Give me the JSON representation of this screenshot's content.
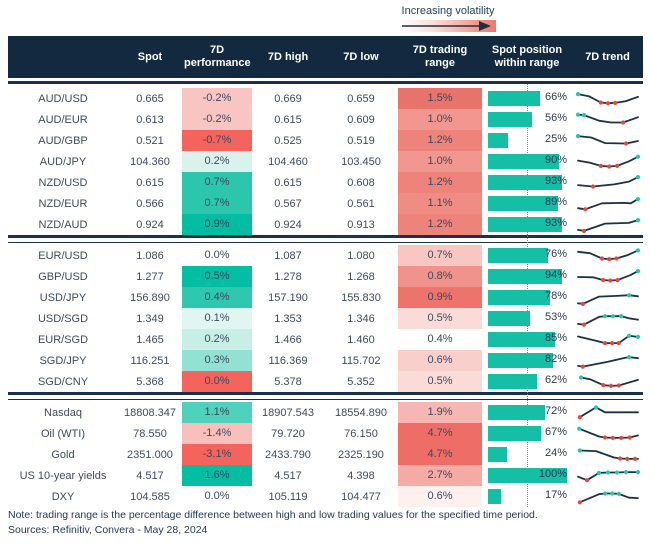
{
  "legend": {
    "label": "Increasing volatility"
  },
  "footer": {
    "note": "Note: trading range is the percentage difference between high and low trading values for the specified time period.",
    "sources": "Sources: Refinitiv, Convera - May 28, 2024"
  },
  "colors": {
    "header_bg": "#13293F",
    "rule": "#1B3049",
    "bar_teal": "#14BFA6",
    "spark_line": "#1C3144",
    "spark_dot_up": "#25C5AE",
    "spark_dot_down": "#E8473C",
    "strong_red": "#F4645C",
    "strong_teal": "#04BEA4"
  },
  "chart_data": {
    "type": "table",
    "columns": [
      "",
      "Spot",
      "7D performance",
      "7D high",
      "7D low",
      "7D trading range",
      "Spot position within range",
      "7D trend"
    ],
    "position_axis": {
      "midline_pct": 50,
      "max_pct": 100
    },
    "groups": [
      {
        "rows": [
          {
            "name": "AUD/USD",
            "spot": "0.665",
            "perf": "-0.2%",
            "perf_bg": "#F8C5C2",
            "high": "0.669",
            "low": "0.659",
            "range": "1.5%",
            "range_bg": "#E8736B",
            "pos": 66,
            "spark": [
              [
                0,
                0.15,
                "t"
              ],
              [
                0.18,
                0.3,
                ""
              ],
              [
                0.38,
                0.75,
                "r"
              ],
              [
                0.5,
                0.8,
                "r"
              ],
              [
                0.62,
                0.78,
                "r"
              ],
              [
                0.8,
                0.65,
                ""
              ],
              [
                1,
                0.35,
                ""
              ]
            ]
          },
          {
            "name": "AUD/EUR",
            "spot": "0.613",
            "perf": "-0.2%",
            "perf_bg": "#F8C5C2",
            "high": "0.615",
            "low": "0.609",
            "range": "1.0%",
            "range_bg": "#F1978F",
            "pos": 56,
            "spark": [
              [
                0,
                0.12,
                "t"
              ],
              [
                0.1,
                0.15,
                "t"
              ],
              [
                0.35,
                0.55,
                ""
              ],
              [
                0.55,
                0.68,
                ""
              ],
              [
                0.75,
                0.68,
                "r"
              ],
              [
                1,
                0.3,
                ""
              ]
            ]
          },
          {
            "name": "AUD/GBP",
            "spot": "0.521",
            "perf": "-0.7%",
            "perf_bg": "#F4645C",
            "high": "0.525",
            "low": "0.519",
            "range": "1.2%",
            "range_bg": "#ED837B",
            "pos": 25,
            "spark": [
              [
                0,
                0.15,
                "t"
              ],
              [
                0.22,
                0.25,
                ""
              ],
              [
                0.45,
                0.65,
                ""
              ],
              [
                0.8,
                0.68,
                "r"
              ],
              [
                1,
                0.5,
                ""
              ]
            ]
          },
          {
            "name": "AUD/JPY",
            "spot": "104.360",
            "perf": "0.2%",
            "perf_bg": "#D9F3EC",
            "high": "104.460",
            "low": "103.450",
            "range": "1.0%",
            "range_bg": "#F1978F",
            "pos": 90,
            "spark": [
              [
                0,
                0.4,
                ""
              ],
              [
                0.2,
                0.55,
                ""
              ],
              [
                0.38,
                0.78,
                "r"
              ],
              [
                0.52,
                0.82,
                "r"
              ],
              [
                0.65,
                0.78,
                "r"
              ],
              [
                0.85,
                0.45,
                ""
              ],
              [
                1,
                0.12,
                "t"
              ]
            ]
          },
          {
            "name": "NZD/USD",
            "spot": "0.615",
            "perf": "0.7%",
            "perf_bg": "#2CC6AD",
            "high": "0.615",
            "low": "0.608",
            "range": "1.2%",
            "range_bg": "#ED837B",
            "pos": 93,
            "spark": [
              [
                0,
                0.65,
                ""
              ],
              [
                0.25,
                0.75,
                "r"
              ],
              [
                0.6,
                0.6,
                ""
              ],
              [
                0.85,
                0.4,
                ""
              ],
              [
                1,
                0.08,
                "t"
              ]
            ]
          },
          {
            "name": "NZD/EUR",
            "spot": "0.566",
            "perf": "0.7%",
            "perf_bg": "#2CC6AD",
            "high": "0.567",
            "low": "0.561",
            "range": "1.1%",
            "range_bg": "#EF8D85",
            "pos": 89,
            "spark": [
              [
                0,
                0.8,
                ""
              ],
              [
                0.12,
                0.88,
                "r"
              ],
              [
                0.4,
                0.45,
                ""
              ],
              [
                0.75,
                0.42,
                ""
              ],
              [
                0.88,
                0.45,
                ""
              ],
              [
                1,
                0.15,
                "t"
              ]
            ]
          },
          {
            "name": "NZD/AUD",
            "spot": "0.924",
            "perf": "0.9%",
            "perf_bg": "#02BDA2",
            "high": "0.924",
            "low": "0.913",
            "range": "1.2%",
            "range_bg": "#ED837B",
            "pos": 93,
            "spark": [
              [
                0,
                0.85,
                ""
              ],
              [
                0.1,
                0.92,
                "r"
              ],
              [
                0.45,
                0.4,
                ""
              ],
              [
                0.85,
                0.35,
                ""
              ],
              [
                1,
                0.15,
                "t"
              ]
            ]
          }
        ]
      },
      {
        "rows": [
          {
            "name": "EUR/USD",
            "spot": "1.086",
            "perf": "0.0%",
            "perf_bg": "#FFFFFF",
            "high": "1.087",
            "low": "1.080",
            "range": "0.7%",
            "range_bg": "#F8C7C3",
            "pos": 76,
            "spark": [
              [
                0,
                0.2,
                ""
              ],
              [
                0.2,
                0.3,
                ""
              ],
              [
                0.4,
                0.68,
                "r"
              ],
              [
                0.52,
                0.72,
                "r"
              ],
              [
                0.64,
                0.68,
                "r"
              ],
              [
                0.82,
                0.45,
                ""
              ],
              [
                1,
                0.1,
                "t"
              ]
            ]
          },
          {
            "name": "GBP/USD",
            "spot": "1.277",
            "perf": "0.5%",
            "perf_bg": "#04BEA4",
            "high": "1.278",
            "low": "1.268",
            "range": "0.8%",
            "range_bg": "#F0938C",
            "pos": 94,
            "spark": [
              [
                0,
                0.5,
                ""
              ],
              [
                0.25,
                0.52,
                ""
              ],
              [
                0.42,
                0.72,
                "r"
              ],
              [
                0.54,
                0.75,
                "r"
              ],
              [
                0.66,
                0.72,
                "r"
              ],
              [
                0.88,
                0.35,
                ""
              ],
              [
                1,
                0.08,
                "t"
              ]
            ]
          },
          {
            "name": "USD/JPY",
            "spot": "156.890",
            "perf": "0.4%",
            "perf_bg": "#2FC8AF",
            "high": "157.190",
            "low": "155.830",
            "range": "0.9%",
            "range_bg": "#ED746D",
            "pos": 78,
            "spark": [
              [
                0,
                0.88,
                ""
              ],
              [
                0.08,
                0.92,
                "r"
              ],
              [
                0.35,
                0.4,
                ""
              ],
              [
                0.65,
                0.35,
                ""
              ],
              [
                0.85,
                0.3,
                "t"
              ],
              [
                1,
                0.38,
                ""
              ]
            ]
          },
          {
            "name": "USD/SGD",
            "spot": "1.349",
            "perf": "0.1%",
            "perf_bg": "#E2F6F1",
            "high": "1.353",
            "low": "1.346",
            "range": "0.5%",
            "range_bg": "#FBDBD7",
            "pos": 53,
            "spark": [
              [
                0,
                0.85,
                ""
              ],
              [
                0.1,
                0.9,
                "r"
              ],
              [
                0.35,
                0.35,
                ""
              ],
              [
                0.45,
                0.3,
                "t"
              ],
              [
                0.58,
                0.3,
                "t"
              ],
              [
                0.72,
                0.3,
                "t"
              ],
              [
                0.85,
                0.45,
                ""
              ],
              [
                1,
                0.55,
                ""
              ]
            ]
          },
          {
            "name": "EUR/SGD",
            "spot": "1.465",
            "perf": "0.2%",
            "perf_bg": "#C7EFE6",
            "high": "1.466",
            "low": "1.460",
            "range": "0.4%",
            "range_bg": "#FFFFFF",
            "pos": 85,
            "spark": [
              [
                0,
                0.25,
                ""
              ],
              [
                0.3,
                0.55,
                ""
              ],
              [
                0.45,
                0.72,
                "r"
              ],
              [
                0.57,
                0.72,
                "r"
              ],
              [
                0.68,
                0.72,
                "r"
              ],
              [
                0.85,
                0.2,
                "t"
              ],
              [
                1,
                0.28,
                "t"
              ]
            ]
          },
          {
            "name": "SGD/JPY",
            "spot": "116.251",
            "perf": "0.3%",
            "perf_bg": "#93E1D3",
            "high": "116.369",
            "low": "115.702",
            "range": "0.6%",
            "range_bg": "#F9CFCB",
            "pos": 82,
            "spark": [
              [
                0,
                0.85,
                ""
              ],
              [
                0.08,
                0.9,
                "r"
              ],
              [
                0.5,
                0.55,
                ""
              ],
              [
                0.75,
                0.3,
                ""
              ],
              [
                0.85,
                0.22,
                "t"
              ],
              [
                1,
                0.3,
                ""
              ]
            ]
          },
          {
            "name": "SGD/CNY",
            "spot": "5.368",
            "perf": "0.0%",
            "perf_bg": "#F4645C",
            "high": "5.378",
            "low": "5.352",
            "range": "0.5%",
            "range_bg": "#FBDBD7",
            "pos": 62,
            "spark": [
              [
                0.05,
                0.18,
                "t"
              ],
              [
                0.2,
                0.3,
                ""
              ],
              [
                0.42,
                0.72,
                "r"
              ],
              [
                0.55,
                0.78,
                "r"
              ],
              [
                0.68,
                0.75,
                "r"
              ],
              [
                1,
                0.35,
                ""
              ]
            ]
          }
        ]
      },
      {
        "rows": [
          {
            "name": "Nasdaq",
            "spot": "18808.347",
            "perf": "1.1%",
            "perf_bg": "#4FD1BB",
            "high": "18907.543",
            "low": "18554.890",
            "range": "1.9%",
            "range_bg": "#F6B6B1",
            "pos": 72,
            "spark": [
              [
                0.03,
                0.8,
                "r"
              ],
              [
                0.3,
                0.1,
                "t"
              ],
              [
                0.45,
                0.45,
                ""
              ],
              [
                1,
                0.45,
                ""
              ]
            ]
          },
          {
            "name": "Oil (WTI)",
            "spot": "78.550",
            "perf": "-1.4%",
            "perf_bg": "#F9BFBB",
            "high": "79.720",
            "low": "76.150",
            "range": "4.7%",
            "range_bg": "#EE6E67",
            "pos": 67,
            "spark": [
              [
                0.02,
                0.12,
                "t"
              ],
              [
                0.35,
                0.68,
                ""
              ],
              [
                0.45,
                0.75,
                "r"
              ],
              [
                0.58,
                0.78,
                "r"
              ],
              [
                0.72,
                0.78,
                "r"
              ],
              [
                0.86,
                0.75,
                "r"
              ],
              [
                1,
                0.6,
                ""
              ]
            ]
          },
          {
            "name": "Gold",
            "spot": "2351.000",
            "perf": "-3.1%",
            "perf_bg": "#F4645C",
            "high": "2433.790",
            "low": "2325.190",
            "range": "4.7%",
            "range_bg": "#EE6E67",
            "pos": 24,
            "spark": [
              [
                0.03,
                0.18,
                "t"
              ],
              [
                0.3,
                0.22,
                ""
              ],
              [
                0.6,
                0.68,
                ""
              ],
              [
                0.7,
                0.75,
                "r"
              ],
              [
                0.82,
                0.78,
                "r"
              ],
              [
                0.95,
                0.78,
                "r"
              ],
              [
                1,
                0.78,
                ""
              ]
            ]
          },
          {
            "name": "US 10-year yields",
            "spot": "4.517",
            "perf": "1.6%",
            "perf_bg": "#04BEA4",
            "high": "4.517",
            "low": "4.398",
            "range": "2.7%",
            "range_bg": "#F5ABA5",
            "pos": 100,
            "spark": [
              [
                0,
                0.55,
                ""
              ],
              [
                0.15,
                0.8,
                "r"
              ],
              [
                0.35,
                0.28,
                "t"
              ],
              [
                0.5,
                0.25,
                "t"
              ],
              [
                0.65,
                0.25,
                "t"
              ],
              [
                0.8,
                0.22,
                "t"
              ],
              [
                1,
                0.22,
                "t"
              ]
            ]
          },
          {
            "name": "DXY",
            "spot": "104.585",
            "perf": "0.0%",
            "perf_bg": "#FFFFFF",
            "high": "105.119",
            "low": "104.477",
            "range": "0.6%",
            "range_bg": "#FDF0EE",
            "pos": 17,
            "spark": [
              [
                0.03,
                0.88,
                "r"
              ],
              [
                0.35,
                0.3,
                ""
              ],
              [
                0.45,
                0.25,
                "t"
              ],
              [
                0.57,
                0.25,
                "t"
              ],
              [
                0.68,
                0.28,
                "t"
              ],
              [
                0.85,
                0.55,
                ""
              ],
              [
                1,
                0.58,
                ""
              ]
            ]
          }
        ]
      }
    ]
  }
}
